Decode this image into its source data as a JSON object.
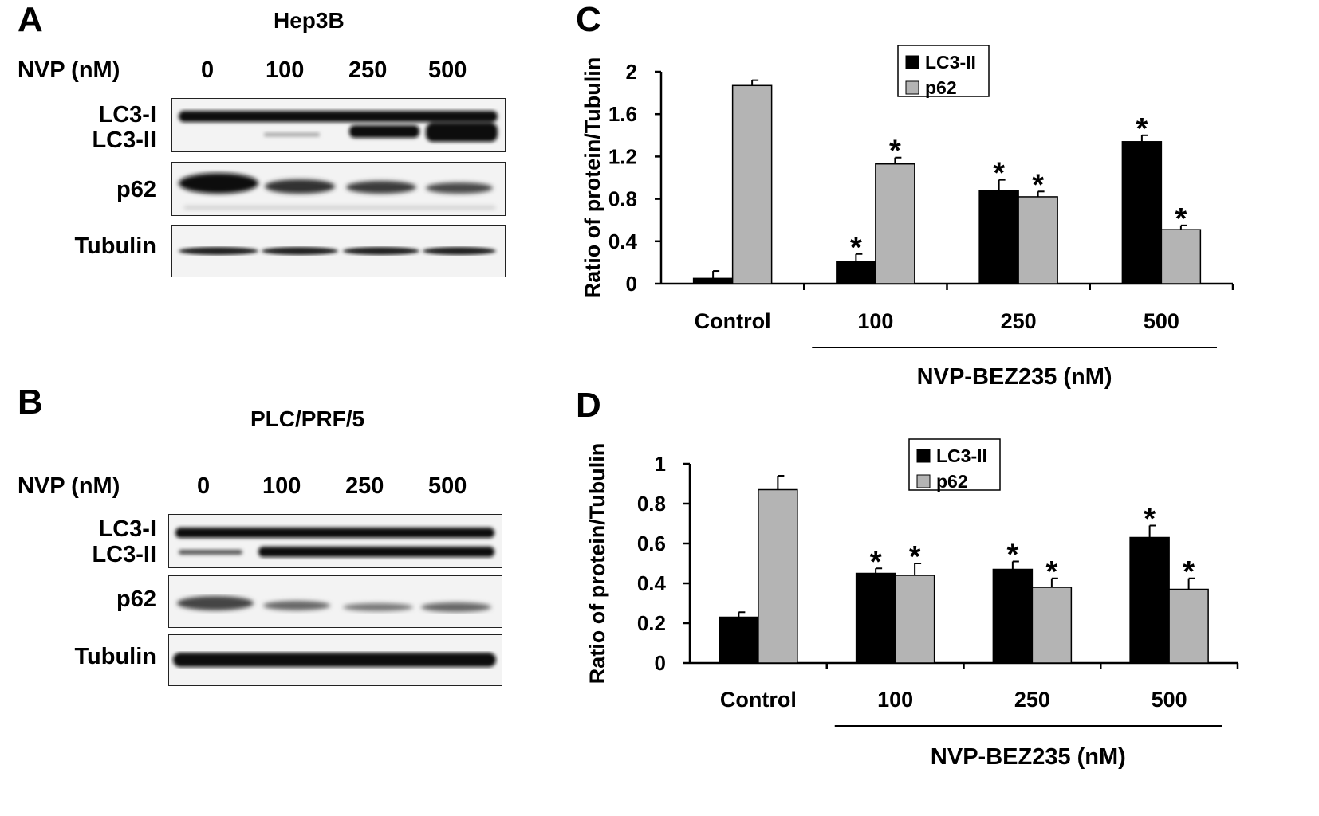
{
  "panels": {
    "A": {
      "letter": "A",
      "title": "Hep3B",
      "row_header": "NVP (nM)",
      "lanes": [
        "0",
        "100",
        "250",
        "500"
      ],
      "blot_labels": {
        "lc3i": "LC3-I",
        "lc3ii": "LC3-II",
        "p62": "p62",
        "tubulin": "Tubulin"
      }
    },
    "B": {
      "letter": "B",
      "title": "PLC/PRF/5",
      "row_header": "NVP (nM)",
      "lanes": [
        "0",
        "100",
        "250",
        "500"
      ],
      "blot_labels": {
        "lc3i": "LC3-I",
        "lc3ii": "LC3-II",
        "p62": "p62",
        "tubulin": "Tubulin"
      }
    },
    "C": {
      "letter": "C"
    },
    "D": {
      "letter": "D"
    }
  },
  "chart_data": [
    {
      "panel": "C",
      "type": "bar",
      "categories": [
        "Control",
        "100",
        "250",
        "500"
      ],
      "series": [
        {
          "name": "LC3-II",
          "color": "#000000",
          "values": [
            0.05,
            0.21,
            0.88,
            1.34
          ],
          "errors": [
            0.07,
            0.07,
            0.1,
            0.06
          ],
          "significant": [
            false,
            true,
            true,
            true
          ]
        },
        {
          "name": "p62",
          "color": "#b4b4b4",
          "values": [
            1.87,
            1.13,
            0.82,
            0.51
          ],
          "errors": [
            0.05,
            0.06,
            0.05,
            0.04
          ],
          "significant": [
            false,
            true,
            true,
            true
          ]
        }
      ],
      "ylabel": "Ratio of protein/Tubulin",
      "xlabel": "NVP-BEZ235 (nM)",
      "ylim": [
        0,
        2
      ],
      "yticks": [
        "0",
        "0.4",
        "0.8",
        "1.2",
        "1.6",
        "2"
      ],
      "ytick_values": [
        0,
        0.4,
        0.8,
        1.2,
        1.6,
        2
      ],
      "significance_mark": "*",
      "legend_position": "top-center"
    },
    {
      "panel": "D",
      "type": "bar",
      "categories": [
        "Control",
        "100",
        "250",
        "500"
      ],
      "series": [
        {
          "name": "LC3-II",
          "color": "#000000",
          "values": [
            0.23,
            0.45,
            0.47,
            0.63
          ],
          "errors": [
            0.025,
            0.025,
            0.04,
            0.06
          ],
          "significant": [
            false,
            true,
            true,
            true
          ]
        },
        {
          "name": "p62",
          "color": "#b4b4b4",
          "values": [
            0.87,
            0.44,
            0.38,
            0.37
          ],
          "errors": [
            0.07,
            0.06,
            0.045,
            0.055
          ],
          "significant": [
            false,
            true,
            true,
            true
          ]
        }
      ],
      "ylabel": "Ratio of protein/Tubulin",
      "xlabel": "NVP-BEZ235 (nM)",
      "ylim": [
        0,
        1
      ],
      "yticks": [
        "0",
        "0.2",
        "0.4",
        "0.6",
        "0.8",
        "1"
      ],
      "ytick_values": [
        0,
        0.2,
        0.4,
        0.6,
        0.8,
        1
      ],
      "significance_mark": "*",
      "legend_position": "top-center"
    }
  ]
}
